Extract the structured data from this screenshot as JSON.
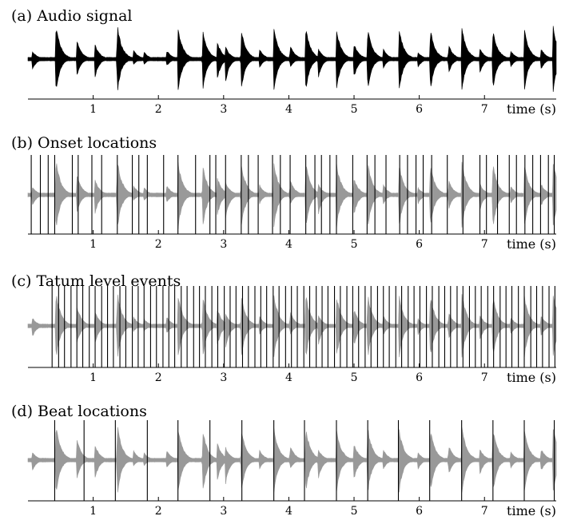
{
  "chart_data": [
    {
      "type": "area",
      "panel": "a",
      "title": "(a) Audio signal",
      "xlabel": "time (s)",
      "xlim": [
        0,
        8.1
      ],
      "x_ticks": [
        1,
        2,
        3,
        4,
        5,
        6,
        7
      ],
      "tick_labels": [
        "1",
        "2",
        "3",
        "4",
        "5",
        "6",
        "7"
      ],
      "waveform_color": "#000000",
      "markers": []
    },
    {
      "type": "area",
      "panel": "b",
      "title": "(b) Onset locations",
      "xlabel": "time (s)",
      "xlim": [
        0,
        8.1
      ],
      "x_ticks": [
        1,
        2,
        3,
        4,
        5,
        6,
        7
      ],
      "tick_labels": [
        "1",
        "2",
        "3",
        "4",
        "5",
        "6",
        "7"
      ],
      "waveform_color": "#999999",
      "markers": [
        0.05,
        0.19,
        0.31,
        0.41,
        0.68,
        0.77,
        0.98,
        1.13,
        1.37,
        1.6,
        1.7,
        1.83,
        2.08,
        2.3,
        2.57,
        2.79,
        2.88,
        3.03,
        3.27,
        3.38,
        3.53,
        3.75,
        3.87,
        4.02,
        4.26,
        4.4,
        4.5,
        4.63,
        4.73,
        4.98,
        5.2,
        5.32,
        5.49,
        5.7,
        5.82,
        5.95,
        6.06,
        6.19,
        6.43,
        6.67,
        6.93,
        7.03,
        7.2,
        7.38,
        7.49,
        7.62,
        7.74,
        7.86,
        7.98,
        8.07
      ]
    },
    {
      "type": "area",
      "panel": "c",
      "title": "(c) Tatum level events",
      "xlabel": "time (s)",
      "xlim": [
        0,
        8.1
      ],
      "x_ticks": [
        1,
        2,
        3,
        4,
        5,
        6,
        7
      ],
      "tick_labels": [
        "1",
        "2",
        "3",
        "4",
        "5",
        "6",
        "7"
      ],
      "waveform_color": "#999999",
      "markers": [
        0.37,
        0.47,
        0.56,
        0.66,
        0.75,
        0.84,
        0.94,
        1.03,
        1.13,
        1.22,
        1.31,
        1.41,
        1.5,
        1.6,
        1.69,
        1.78,
        1.88,
        1.97,
        2.07,
        2.16,
        2.25,
        2.35,
        2.44,
        2.54,
        2.63,
        2.72,
        2.82,
        2.91,
        3.01,
        3.1,
        3.19,
        3.29,
        3.38,
        3.48,
        3.57,
        3.66,
        3.76,
        3.85,
        3.95,
        4.04,
        4.13,
        4.23,
        4.32,
        4.42,
        4.51,
        4.6,
        4.7,
        4.79,
        4.89,
        4.98,
        5.07,
        5.17,
        5.26,
        5.36,
        5.45,
        5.54,
        5.64,
        5.73,
        5.83,
        5.92,
        6.01,
        6.11,
        6.2,
        6.3,
        6.39,
        6.48,
        6.58,
        6.67,
        6.77,
        6.86,
        6.95,
        7.05,
        7.14,
        7.24,
        7.33,
        7.42,
        7.52,
        7.61,
        7.71,
        7.8,
        7.89,
        7.99,
        8.08
      ]
    },
    {
      "type": "area",
      "panel": "d",
      "title": "(d) Beat locations",
      "xlabel": "time (s)",
      "xlim": [
        0,
        8.1
      ],
      "x_ticks": [
        1,
        2,
        3,
        4,
        5,
        6,
        7
      ],
      "tick_labels": [
        "1",
        "2",
        "3",
        "4",
        "5",
        "6",
        "7"
      ],
      "waveform_color": "#999999",
      "markers": [
        0.41,
        0.86,
        1.34,
        1.83,
        2.3,
        2.79,
        3.28,
        3.77,
        4.24,
        4.73,
        5.21,
        5.68,
        6.16,
        6.65,
        7.13,
        7.61,
        8.07
      ]
    }
  ],
  "waveform": {
    "units": "seconds",
    "transients": [
      {
        "t": 0.07,
        "a": 0.22,
        "s": 0.3
      },
      {
        "t": 0.43,
        "a": 0.95,
        "s": 0.95
      },
      {
        "t": 0.75,
        "a": 0.55,
        "s": 0.5
      },
      {
        "t": 1.03,
        "a": 0.4,
        "s": 0.5
      },
      {
        "t": 1.37,
        "a": 0.95,
        "s": 0.95
      },
      {
        "t": 1.62,
        "a": 0.25,
        "s": 0.15
      },
      {
        "t": 1.78,
        "a": 0.2,
        "s": 0.15
      },
      {
        "t": 2.13,
        "a": 0.25,
        "s": 0.2
      },
      {
        "t": 2.3,
        "a": 0.9,
        "s": 0.95
      },
      {
        "t": 2.68,
        "a": 0.82,
        "s": 0.9
      },
      {
        "t": 2.9,
        "a": 0.5,
        "s": 0.6
      },
      {
        "t": 3.03,
        "a": 0.35,
        "s": 0.65
      },
      {
        "t": 3.27,
        "a": 0.85,
        "s": 0.9
      },
      {
        "t": 3.55,
        "a": 0.28,
        "s": 0.25
      },
      {
        "t": 3.77,
        "a": 0.88,
        "s": 0.9
      },
      {
        "t": 4.02,
        "a": 0.4,
        "s": 0.25
      },
      {
        "t": 4.26,
        "a": 0.88,
        "s": 0.9
      },
      {
        "t": 4.45,
        "a": 0.3,
        "s": 0.55
      },
      {
        "t": 4.73,
        "a": 0.85,
        "s": 0.9
      },
      {
        "t": 5.0,
        "a": 0.45,
        "s": 0.55
      },
      {
        "t": 5.21,
        "a": 0.88,
        "s": 0.9
      },
      {
        "t": 5.45,
        "a": 0.28,
        "s": 0.25
      },
      {
        "t": 5.69,
        "a": 0.85,
        "s": 0.9
      },
      {
        "t": 5.98,
        "a": 0.2,
        "s": 0.25
      },
      {
        "t": 6.17,
        "a": 0.85,
        "s": 0.9
      },
      {
        "t": 6.45,
        "a": 0.4,
        "s": 0.4
      },
      {
        "t": 6.65,
        "a": 0.95,
        "s": 0.95
      },
      {
        "t": 6.93,
        "a": 0.3,
        "s": 0.4
      },
      {
        "t": 7.13,
        "a": 0.85,
        "s": 0.9
      },
      {
        "t": 7.4,
        "a": 0.25,
        "s": 0.25
      },
      {
        "t": 7.61,
        "a": 0.85,
        "s": 0.9
      },
      {
        "t": 7.87,
        "a": 0.3,
        "s": 0.3
      },
      {
        "t": 8.05,
        "a": 0.95,
        "s": 0.95
      }
    ]
  }
}
